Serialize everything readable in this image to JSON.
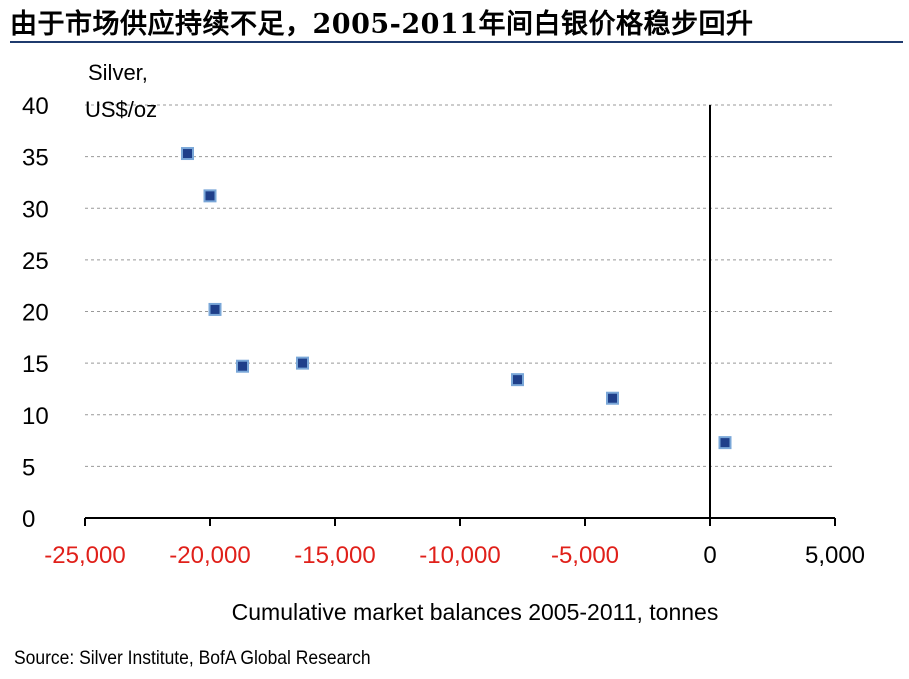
{
  "title": "由于市场供应持续不足，2005-2011年间白银价格稳步回升",
  "source": "Source: Silver Institute, BofA Global Research",
  "colors": {
    "title_rule": "#1f3b6e",
    "marker_fill": "#1f3f8a",
    "marker_edge": "#7aa7d8",
    "negative_tick": "#e0201a",
    "positive_tick": "#000000",
    "grid": "#999999"
  },
  "chart_data": {
    "type": "scatter",
    "title": "",
    "xlabel": "Cumulative market balances 2005-2011, tonnes",
    "ylabel_lines": [
      "Silver,",
      "US$/oz"
    ],
    "xlim": [
      -25000,
      5000
    ],
    "ylim": [
      0,
      40
    ],
    "xticks": [
      -25000,
      -20000,
      -15000,
      -10000,
      -5000,
      0,
      5000
    ],
    "xtick_labels": [
      "-25,000",
      "-20,000",
      "-15,000",
      "-10,000",
      "-5,000",
      "0",
      "5,000"
    ],
    "yticks": [
      0,
      5,
      10,
      15,
      20,
      25,
      30,
      35,
      40
    ],
    "ytick_labels": [
      "0",
      "5",
      "10",
      "15",
      "20",
      "25",
      "30",
      "35",
      "40"
    ],
    "grid": "horizontal dashed",
    "points": [
      {
        "x": 600,
        "y": 7.3
      },
      {
        "x": -3900,
        "y": 11.6
      },
      {
        "x": -7700,
        "y": 13.4
      },
      {
        "x": -16300,
        "y": 15.0
      },
      {
        "x": -18700,
        "y": 14.7
      },
      {
        "x": -19800,
        "y": 20.2
      },
      {
        "x": -20000,
        "y": 31.2
      },
      {
        "x": -20900,
        "y": 35.3
      }
    ]
  }
}
